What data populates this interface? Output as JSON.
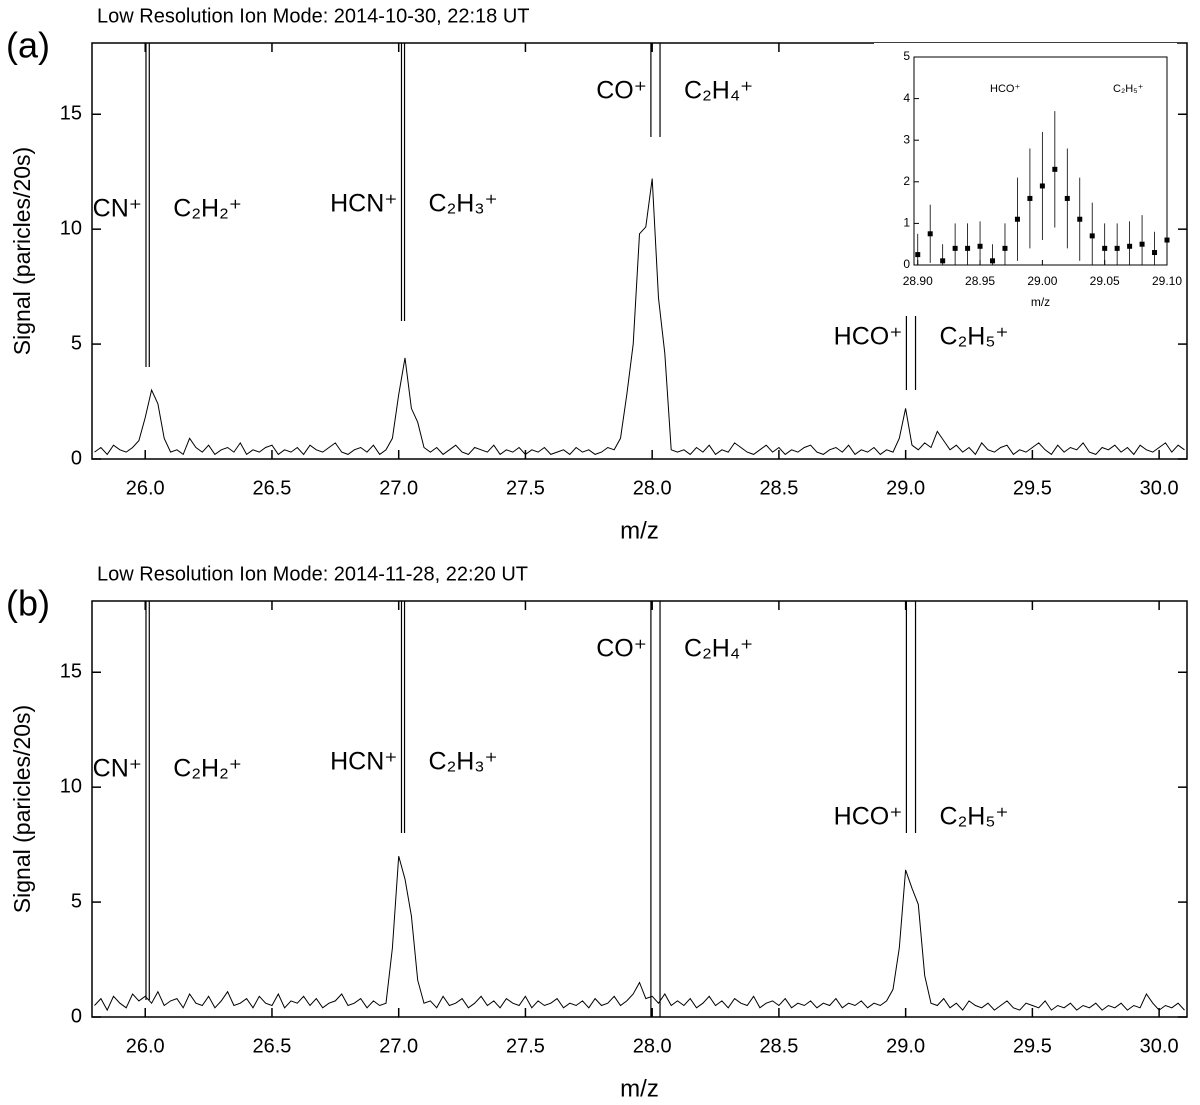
{
  "chart_data": [
    {
      "type": "line",
      "panel": "(a)",
      "title": "Low Resolution Ion Mode: 2014-10-30, 22:18 UT",
      "xlabel": "m/z",
      "ylabel": "Signal (paricles/20s)",
      "color": "#000000",
      "xlim": [
        25.79,
        30.11
      ],
      "ylim": [
        0,
        18.1
      ],
      "xticks": [
        {
          "value": 26,
          "label": "26.0"
        },
        26.5,
        {
          "value": 27,
          "label": "27.0"
        },
        27.5,
        {
          "value": 28,
          "label": "28.0"
        },
        28.5,
        {
          "value": 29,
          "label": "29.0"
        },
        29.5,
        {
          "value": 30,
          "label": "30.0"
        }
      ],
      "yticks": [
        0,
        5,
        10,
        15
      ],
      "ions": [
        {
          "label": "CN⁺",
          "mass": 26.003
        },
        {
          "label": "C₂H₂⁺",
          "mass": 26.016
        },
        {
          "label": "HCN⁺",
          "mass": 27.011
        },
        {
          "label": "C₂H₃⁺",
          "mass": 27.023
        },
        {
          "label": "CO⁺",
          "mass": 27.995
        },
        {
          "label": "C₂H₄⁺",
          "mass": 28.031
        },
        {
          "label": "HCO⁺",
          "mass": 29.003
        },
        {
          "label": "C₂H₅⁺",
          "mass": 29.039
        }
      ],
      "x": [
        25.8,
        25.825,
        25.85,
        25.875,
        25.9,
        25.925,
        25.95,
        25.975,
        26,
        26.025,
        26.05,
        26.075,
        26.1,
        26.125,
        26.15,
        26.175,
        26.2,
        26.225,
        26.25,
        26.275,
        26.3,
        26.325,
        26.35,
        26.375,
        26.4,
        26.425,
        26.45,
        26.475,
        26.5,
        26.525,
        26.55,
        26.575,
        26.6,
        26.625,
        26.65,
        26.675,
        26.7,
        26.725,
        26.75,
        26.775,
        26.8,
        26.825,
        26.85,
        26.875,
        26.9,
        26.925,
        26.95,
        26.975,
        27,
        27.025,
        27.05,
        27.075,
        27.1,
        27.125,
        27.15,
        27.175,
        27.2,
        27.225,
        27.25,
        27.275,
        27.3,
        27.325,
        27.35,
        27.375,
        27.4,
        27.425,
        27.45,
        27.475,
        27.5,
        27.525,
        27.55,
        27.575,
        27.6,
        27.625,
        27.65,
        27.675,
        27.7,
        27.725,
        27.75,
        27.775,
        27.8,
        27.825,
        27.85,
        27.875,
        27.9,
        27.925,
        27.95,
        27.975,
        28,
        28.025,
        28.05,
        28.075,
        28.1,
        28.125,
        28.15,
        28.175,
        28.2,
        28.225,
        28.25,
        28.275,
        28.3,
        28.325,
        28.35,
        28.375,
        28.4,
        28.425,
        28.45,
        28.475,
        28.5,
        28.525,
        28.55,
        28.575,
        28.6,
        28.625,
        28.65,
        28.675,
        28.7,
        28.725,
        28.75,
        28.775,
        28.8,
        28.825,
        28.85,
        28.875,
        28.9,
        28.925,
        28.95,
        28.975,
        29,
        29.025,
        29.05,
        29.075,
        29.1,
        29.125,
        29.15,
        29.175,
        29.2,
        29.225,
        29.25,
        29.275,
        29.3,
        29.325,
        29.35,
        29.375,
        29.4,
        29.425,
        29.45,
        29.475,
        29.5,
        29.525,
        29.55,
        29.575,
        29.6,
        29.625,
        29.65,
        29.675,
        29.7,
        29.725,
        29.75,
        29.775,
        29.8,
        29.825,
        29.85,
        29.875,
        29.9,
        29.925,
        29.95,
        29.975,
        30,
        30.025,
        30.05,
        30.075,
        30.1
      ],
      "values": [
        0.3,
        0.5,
        0.2,
        0.6,
        0.4,
        0.3,
        0.5,
        0.8,
        1.8,
        3.0,
        2.4,
        0.9,
        0.3,
        0.4,
        0.2,
        0.9,
        0.5,
        0.3,
        0.6,
        0.2,
        0.4,
        0.5,
        0.3,
        0.7,
        0.2,
        0.4,
        0.3,
        0.5,
        0.6,
        0.2,
        0.4,
        0.3,
        0.5,
        0.2,
        0.6,
        0.4,
        0.3,
        0.5,
        0.7,
        0.3,
        0.2,
        0.4,
        0.5,
        0.3,
        0.6,
        0.2,
        0.4,
        0.9,
        2.8,
        4.4,
        2.2,
        1.6,
        0.5,
        0.3,
        0.5,
        0.2,
        0.4,
        0.6,
        0.3,
        0.2,
        0.5,
        0.4,
        0.3,
        0.6,
        0.2,
        0.4,
        0.3,
        0.5,
        0.2,
        0.4,
        0.3,
        0.5,
        0.2,
        0.3,
        0.4,
        0.2,
        0.5,
        0.3,
        0.4,
        0.2,
        0.3,
        0.5,
        0.4,
        0.9,
        2.8,
        5.0,
        9.8,
        10.1,
        12.2,
        7.0,
        4.6,
        0.4,
        0.3,
        0.4,
        0.2,
        0.5,
        0.3,
        0.6,
        0.2,
        0.4,
        0.3,
        0.7,
        0.5,
        0.3,
        0.2,
        0.4,
        0.6,
        0.3,
        0.5,
        0.2,
        0.4,
        0.3,
        0.5,
        0.6,
        0.3,
        0.2,
        0.4,
        0.5,
        0.3,
        0.6,
        0.2,
        0.4,
        0.3,
        0.5,
        0.2,
        0.4,
        0.3,
        0.9,
        2.2,
        0.6,
        0.4,
        0.7,
        0.5,
        1.2,
        0.8,
        0.4,
        0.6,
        0.3,
        0.5,
        0.2,
        0.7,
        0.4,
        0.3,
        0.5,
        0.6,
        0.2,
        0.4,
        0.3,
        0.5,
        0.7,
        0.4,
        0.2,
        0.6,
        0.3,
        0.5,
        0.4,
        0.7,
        0.3,
        0.2,
        0.5,
        0.4,
        0.6,
        0.3,
        0.5,
        0.2,
        0.6,
        0.4,
        0.3,
        0.5,
        0.7,
        0.3,
        0.6,
        0.4
      ]
    },
    {
      "type": "line",
      "panel": "(b)",
      "title": "Low Resolution Ion Mode: 2014-11-28, 22:20 UT",
      "xlabel": "m/z",
      "ylabel": "Signal (paricles/20s)",
      "color": "#000000",
      "xlim": [
        25.79,
        30.11
      ],
      "ylim": [
        0,
        18.1
      ],
      "xticks": [
        {
          "value": 26,
          "label": "26.0"
        },
        26.5,
        {
          "value": 27,
          "label": "27.0"
        },
        27.5,
        {
          "value": 28,
          "label": "28.0"
        },
        28.5,
        {
          "value": 29,
          "label": "29.0"
        },
        29.5,
        {
          "value": 30,
          "label": "30.0"
        }
      ],
      "yticks": [
        0,
        5,
        10,
        15
      ],
      "ions": [
        {
          "label": "CN⁺",
          "mass": 26.003
        },
        {
          "label": "C₂H₂⁺",
          "mass": 26.016
        },
        {
          "label": "HCN⁺",
          "mass": 27.011
        },
        {
          "label": "C₂H₃⁺",
          "mass": 27.023
        },
        {
          "label": "CO⁺",
          "mass": 27.995
        },
        {
          "label": "C₂H₄⁺",
          "mass": 28.031
        },
        {
          "label": "HCO⁺",
          "mass": 29.003
        },
        {
          "label": "C₂H₅⁺",
          "mass": 29.039
        }
      ],
      "x": [
        25.8,
        25.825,
        25.85,
        25.875,
        25.9,
        25.925,
        25.95,
        25.975,
        26,
        26.025,
        26.05,
        26.075,
        26.1,
        26.125,
        26.15,
        26.175,
        26.2,
        26.225,
        26.25,
        26.275,
        26.3,
        26.325,
        26.35,
        26.375,
        26.4,
        26.425,
        26.45,
        26.475,
        26.5,
        26.525,
        26.55,
        26.575,
        26.6,
        26.625,
        26.65,
        26.675,
        26.7,
        26.725,
        26.75,
        26.775,
        26.8,
        26.825,
        26.85,
        26.875,
        26.9,
        26.925,
        26.95,
        26.975,
        27,
        27.025,
        27.05,
        27.075,
        27.1,
        27.125,
        27.15,
        27.175,
        27.2,
        27.225,
        27.25,
        27.275,
        27.3,
        27.325,
        27.35,
        27.375,
        27.4,
        27.425,
        27.45,
        27.475,
        27.5,
        27.525,
        27.55,
        27.575,
        27.6,
        27.625,
        27.65,
        27.675,
        27.7,
        27.725,
        27.75,
        27.775,
        27.8,
        27.825,
        27.85,
        27.875,
        27.9,
        27.925,
        27.95,
        27.975,
        28,
        28.025,
        28.05,
        28.075,
        28.1,
        28.125,
        28.15,
        28.175,
        28.2,
        28.225,
        28.25,
        28.275,
        28.3,
        28.325,
        28.35,
        28.375,
        28.4,
        28.425,
        28.45,
        28.475,
        28.5,
        28.525,
        28.55,
        28.575,
        28.6,
        28.625,
        28.65,
        28.675,
        28.7,
        28.725,
        28.75,
        28.775,
        28.8,
        28.825,
        28.85,
        28.875,
        28.9,
        28.925,
        28.95,
        28.975,
        29,
        29.025,
        29.05,
        29.075,
        29.1,
        29.125,
        29.15,
        29.175,
        29.2,
        29.225,
        29.25,
        29.275,
        29.3,
        29.325,
        29.35,
        29.375,
        29.4,
        29.425,
        29.45,
        29.475,
        29.5,
        29.525,
        29.55,
        29.575,
        29.6,
        29.625,
        29.65,
        29.675,
        29.7,
        29.725,
        29.75,
        29.775,
        29.8,
        29.825,
        29.85,
        29.875,
        29.9,
        29.925,
        29.95,
        29.975,
        30,
        30.025,
        30.05,
        30.075,
        30.1
      ],
      "values": [
        0.5,
        0.8,
        0.3,
        0.9,
        0.6,
        0.4,
        1.0,
        0.7,
        0.9,
        0.6,
        1.1,
        0.5,
        0.7,
        0.8,
        0.4,
        1.0,
        0.6,
        0.5,
        0.9,
        0.4,
        0.7,
        1.1,
        0.5,
        0.6,
        0.8,
        0.4,
        0.9,
        0.6,
        0.5,
        1.0,
        0.4,
        0.7,
        0.6,
        0.9,
        0.5,
        0.8,
        0.4,
        0.6,
        0.7,
        1.0,
        0.5,
        0.6,
        0.8,
        0.4,
        0.7,
        0.5,
        0.6,
        3.0,
        7.0,
        6.0,
        4.4,
        1.6,
        0.6,
        0.7,
        0.4,
        0.9,
        0.5,
        0.6,
        0.8,
        0.4,
        0.6,
        0.9,
        0.5,
        0.7,
        0.4,
        0.8,
        0.6,
        0.5,
        0.9,
        0.4,
        0.7,
        0.5,
        0.6,
        0.8,
        0.4,
        0.6,
        0.5,
        0.7,
        0.4,
        0.8,
        0.5,
        0.6,
        0.9,
        0.5,
        0.7,
        1.0,
        1.5,
        0.8,
        0.9,
        0.6,
        1.0,
        0.5,
        0.7,
        0.5,
        0.8,
        0.4,
        0.6,
        0.9,
        0.5,
        0.7,
        0.4,
        0.8,
        0.6,
        0.5,
        0.9,
        0.4,
        0.6,
        0.7,
        0.5,
        0.8,
        0.4,
        0.6,
        0.5,
        0.7,
        0.4,
        0.6,
        0.5,
        0.8,
        0.4,
        0.6,
        0.5,
        0.7,
        0.4,
        0.6,
        0.5,
        0.7,
        1.2,
        3.0,
        6.4,
        5.6,
        4.9,
        1.8,
        0.6,
        0.5,
        0.8,
        0.4,
        0.6,
        0.3,
        0.7,
        0.5,
        0.4,
        0.6,
        0.3,
        0.5,
        0.7,
        0.4,
        0.3,
        0.6,
        0.5,
        0.4,
        0.7,
        0.3,
        0.5,
        0.4,
        0.6,
        0.3,
        0.5,
        0.4,
        0.6,
        0.3,
        0.5,
        0.4,
        0.6,
        0.3,
        0.5,
        0.4,
        1.0,
        0.6,
        0.3,
        0.5,
        0.4,
        0.6,
        0.3
      ]
    },
    {
      "type": "scatter",
      "xlabel": "m/z",
      "color": "#000000",
      "annotations": [
        "HCO⁺",
        "C₂H₅⁺"
      ],
      "xlim": [
        28.897,
        29.1
      ],
      "ylim": [
        0,
        5
      ],
      "xticks": [
        {
          "value": 28.9,
          "label": "28.90"
        },
        28.95,
        {
          "value": 29,
          "label": "29.00"
        },
        29.05,
        {
          "value": 29.1,
          "label": "29.10"
        }
      ],
      "yticks": [
        0,
        1,
        2,
        3,
        4,
        5
      ],
      "x": [
        28.9,
        28.91,
        28.92,
        28.93,
        28.94,
        28.95,
        28.96,
        28.97,
        28.98,
        28.99,
        29,
        29.01,
        29.02,
        29.03,
        29.04,
        29.05,
        29.06,
        29.07,
        29.08,
        29.09,
        29.1
      ],
      "values": [
        0.25,
        0.75,
        0.1,
        0.4,
        0.4,
        0.45,
        0.1,
        0.4,
        1.1,
        1.6,
        1.9,
        2.3,
        1.6,
        1.1,
        0.7,
        0.4,
        0.4,
        0.45,
        0.5,
        0.3,
        0.6
      ],
      "errors": [
        0.5,
        0.7,
        0.4,
        0.6,
        0.6,
        0.6,
        0.4,
        0.6,
        1.0,
        1.2,
        1.3,
        1.4,
        1.2,
        1.0,
        0.8,
        0.6,
        0.6,
        0.6,
        0.7,
        0.5,
        0.7
      ]
    }
  ]
}
